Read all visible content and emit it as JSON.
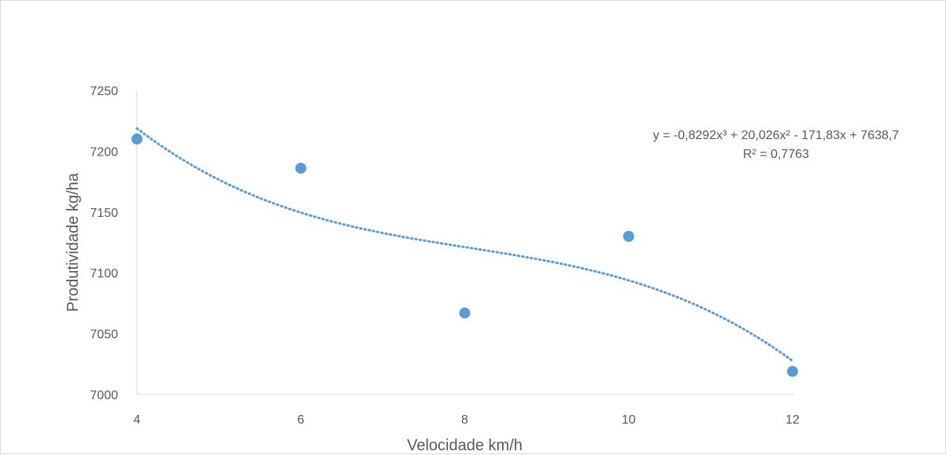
{
  "chart_data": {
    "type": "scatter",
    "title": "",
    "xlabel": "Velocidade km/h",
    "ylabel": "Produtividade kg/ha",
    "xlim": [
      4,
      12
    ],
    "ylim": [
      7000,
      7250
    ],
    "x_ticks": [
      "4",
      "6",
      "8",
      "10",
      "12"
    ],
    "y_ticks": [
      "7000",
      "7050",
      "7100",
      "7150",
      "7200",
      "7250"
    ],
    "grid": false,
    "legend": "none",
    "series": [
      {
        "x": [
          4,
          6,
          8,
          10,
          12
        ],
        "y": [
          7210,
          7186,
          7067,
          7130,
          7019
        ],
        "color": "#5b9bd5"
      }
    ],
    "trendline": {
      "type": "polynomial",
      "order": 3,
      "coefficients": [
        -0.8292,
        20.026,
        -171.83,
        7638.7
      ],
      "style": "dotted",
      "color": "#5b9bd5",
      "equation_label": "y = -0,8292x³ + 20,026x² - 171,83x + 7638,7",
      "r2_label": "R² = 0,7763"
    }
  }
}
